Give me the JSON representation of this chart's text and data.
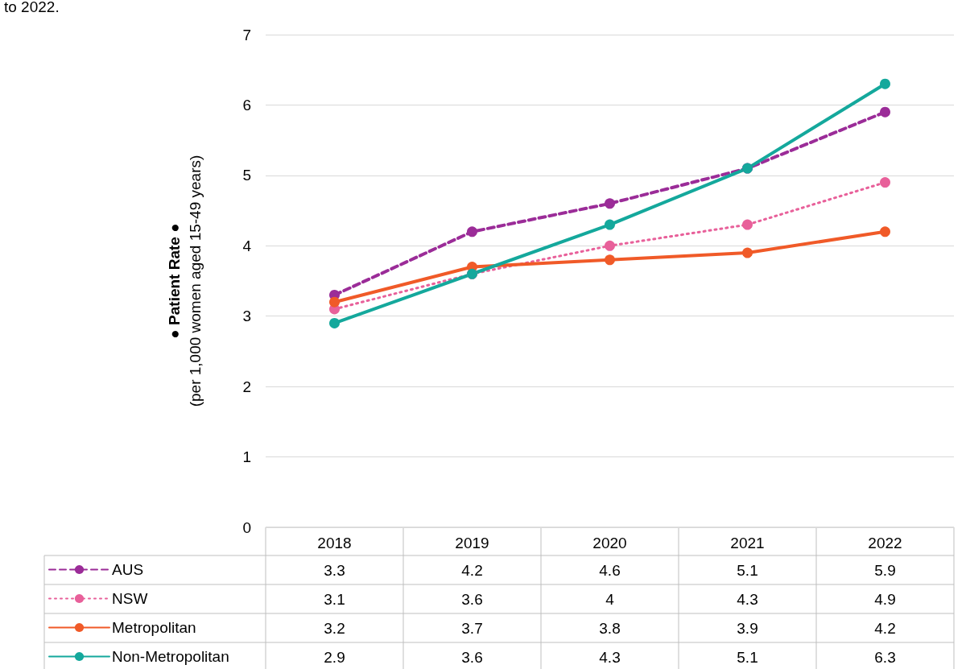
{
  "chart_data": {
    "type": "line",
    "title": "to 2022.",
    "ylabel": "● Patient Rate ●\n(per 1,000 women aged 15-49 years)",
    "categories": [
      "2018",
      "2019",
      "2020",
      "2021",
      "2022"
    ],
    "series": [
      {
        "name": "AUS",
        "color": "#9b2c98",
        "line_style": "dashed",
        "values": [
          3.3,
          4.2,
          4.6,
          5.1,
          5.9
        ]
      },
      {
        "name": "NSW",
        "color": "#e8609a",
        "line_style": "dotted",
        "values": [
          3.1,
          3.6,
          4,
          4.3,
          4.9
        ]
      },
      {
        "name": "Metropolitan",
        "color": "#f05a28",
        "line_style": "solid",
        "values": [
          3.2,
          3.7,
          3.8,
          3.9,
          4.2
        ]
      },
      {
        "name": "Non-Metropolitan",
        "color": "#14a89c",
        "line_style": "solid",
        "values": [
          2.9,
          3.6,
          4.3,
          5.1,
          6.3
        ]
      }
    ],
    "ylim": [
      0,
      7
    ],
    "yticks": [
      0,
      1,
      2,
      3,
      4,
      5,
      6,
      7
    ],
    "grid": "y",
    "legend": "bottom",
    "marker": "circle",
    "data_labels": true
  }
}
